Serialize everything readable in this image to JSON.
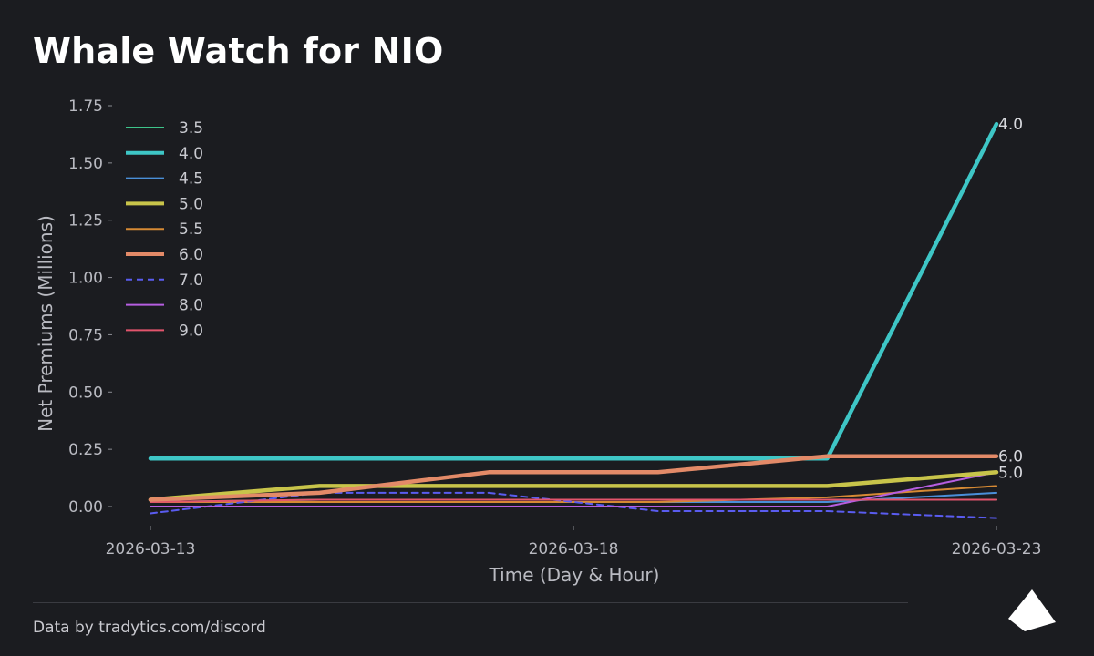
{
  "header": {
    "title": "Whale Watch for NIO"
  },
  "footer": {
    "credit": "Data by tradytics.com/discord"
  },
  "chart_data": {
    "type": "line",
    "title": "Whale Watch for NIO",
    "xlabel": "Time (Day & Hour)",
    "ylabel": "Net Premiums (Millions)",
    "ylim": [
      -0.05,
      1.8
    ],
    "xlim": [
      0,
      10
    ],
    "yticks": [
      {
        "value": 0.0,
        "label": "0.00"
      },
      {
        "value": 0.25,
        "label": "0.25"
      },
      {
        "value": 0.5,
        "label": "0.50"
      },
      {
        "value": 0.75,
        "label": "0.75"
      },
      {
        "value": 1.0,
        "label": "1.00"
      },
      {
        "value": 1.25,
        "label": "1.25"
      },
      {
        "value": 1.5,
        "label": "1.50"
      },
      {
        "value": 1.75,
        "label": "1.75"
      }
    ],
    "xticks": [
      {
        "value": 0,
        "label": "2026-03-13"
      },
      {
        "value": 5,
        "label": "2026-03-18"
      },
      {
        "value": 10,
        "label": "2026-03-23"
      }
    ],
    "grid": false,
    "legend_position": "top-left",
    "x": [
      0,
      2,
      4,
      6,
      8,
      10
    ],
    "series": [
      {
        "name": "3.5",
        "color": "#3ec48a",
        "width": 2,
        "dash": false,
        "values": [
          0.02,
          0.03,
          0.03,
          0.03,
          0.03,
          0.03
        ]
      },
      {
        "name": "4.0",
        "color": "#3ec6c6",
        "width": 4.5,
        "dash": false,
        "x": [
          0,
          2,
          4,
          6,
          8,
          10
        ],
        "values": [
          0.21,
          0.21,
          0.21,
          0.21,
          0.21,
          1.67
        ],
        "points": [
          [
            0,
            0.21
          ],
          [
            8,
            0.21
          ],
          [
            10.0,
            1.67
          ],
          [
            10,
            1.67
          ]
        ]
      },
      {
        "name": "4.5",
        "color": "#4a8fd8",
        "width": 2,
        "dash": false,
        "values": [
          0.02,
          0.02,
          0.02,
          0.02,
          0.02,
          0.06
        ]
      },
      {
        "name": "5.0",
        "color": "#c8c44a",
        "width": 4.5,
        "dash": false,
        "values": [
          0.03,
          0.09,
          0.09,
          0.09,
          0.09,
          0.15
        ]
      },
      {
        "name": "5.5",
        "color": "#d68a34",
        "width": 2,
        "dash": false,
        "values": [
          0.02,
          0.02,
          0.02,
          0.02,
          0.04,
          0.09
        ]
      },
      {
        "name": "6.0",
        "color": "#e38a68",
        "width": 4.5,
        "dash": false,
        "values": [
          0.03,
          0.06,
          0.15,
          0.15,
          0.22,
          0.22
        ]
      },
      {
        "name": "7.0",
        "color": "#5a5cf0",
        "width": 2,
        "dash": true,
        "values": [
          -0.03,
          0.06,
          0.06,
          -0.02,
          -0.02,
          -0.05
        ]
      },
      {
        "name": "8.0",
        "color": "#b65ee0",
        "width": 2,
        "dash": false,
        "values": [
          0.0,
          0.0,
          0.0,
          0.0,
          0.0,
          0.15
        ]
      },
      {
        "name": "9.0",
        "color": "#e2546c",
        "width": 2,
        "dash": false,
        "values": [
          0.02,
          0.03,
          0.03,
          0.03,
          0.03,
          0.03
        ]
      }
    ],
    "end_labels": [
      {
        "series": "4.0",
        "label": "4.0"
      },
      {
        "series": "6.0",
        "label": "6.0"
      },
      {
        "series": "5.0",
        "label": "5.0"
      }
    ]
  }
}
